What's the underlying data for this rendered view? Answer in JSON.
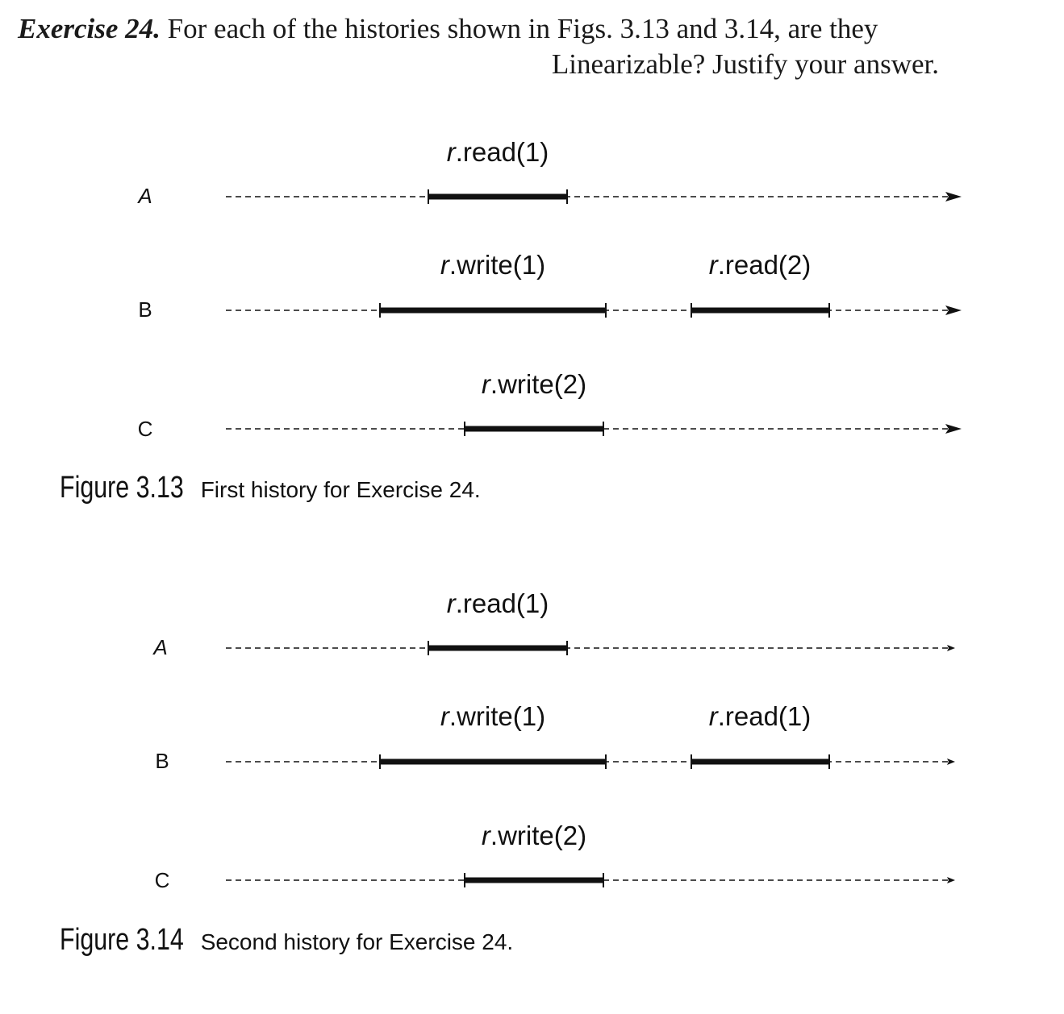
{
  "exercise": {
    "label": "Exercise 24.",
    "text_line1": "For each of the histories shown in Figs. 3.13 and 3.14, are they",
    "text_line2": "Linearizable? Justify your answer."
  },
  "figures": [
    {
      "caption_number": "Figure 3.13",
      "caption_text": "First history for Exercise 24.",
      "threads": [
        {
          "name": "A",
          "ops": [
            {
              "prefix": "r",
              "suffix": ".read(1)"
            }
          ]
        },
        {
          "name": "B",
          "ops": [
            {
              "prefix": "r",
              "suffix": ".write(1)"
            },
            {
              "prefix": "r",
              "suffix": ".read(2)"
            }
          ]
        },
        {
          "name": "C",
          "ops": [
            {
              "prefix": "r",
              "suffix": ".write(2)"
            }
          ]
        }
      ]
    },
    {
      "caption_number": "Figure 3.14",
      "caption_text": "Second history for Exercise 24.",
      "threads": [
        {
          "name": "A",
          "ops": [
            {
              "prefix": "r",
              "suffix": ".read(1)"
            }
          ]
        },
        {
          "name": "B",
          "ops": [
            {
              "prefix": "r",
              "suffix": ".write(1)"
            },
            {
              "prefix": "r",
              "suffix": ".read(1)"
            }
          ]
        },
        {
          "name": "C",
          "ops": [
            {
              "prefix": "r",
              "suffix": ".write(2)"
            }
          ]
        }
      ]
    }
  ]
}
